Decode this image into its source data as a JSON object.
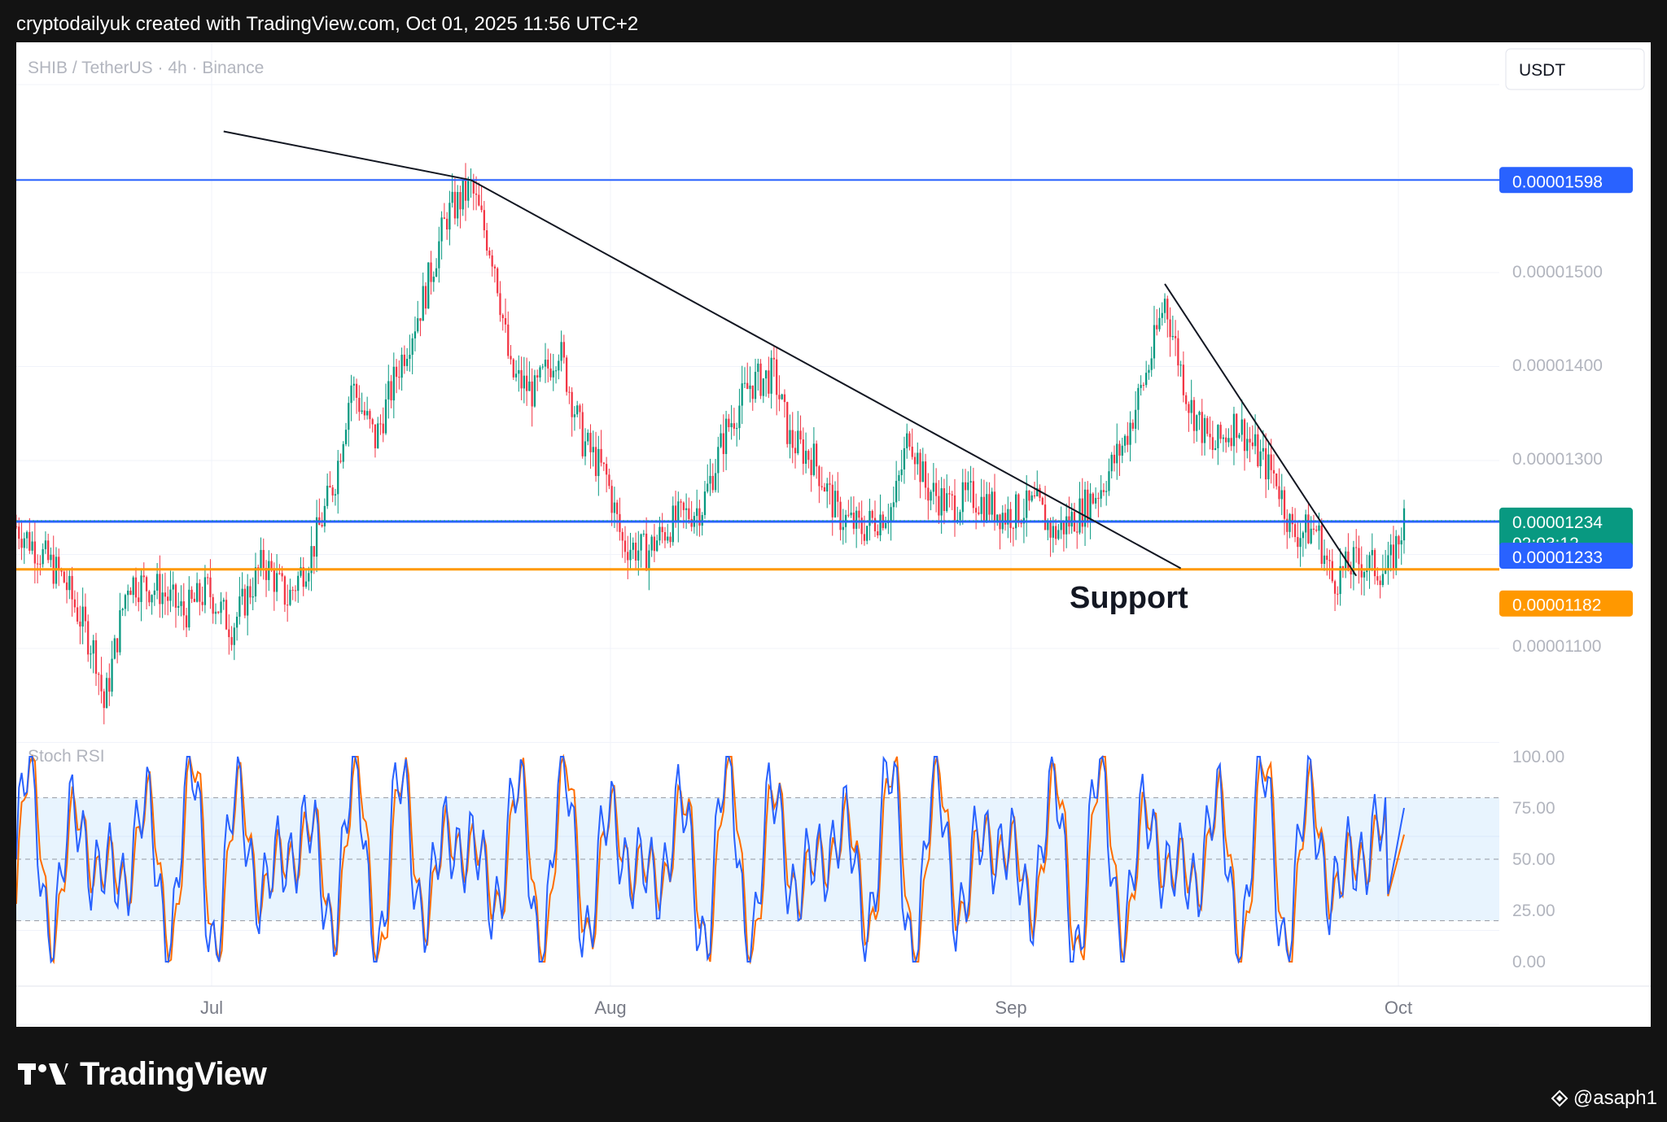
{
  "header": {
    "text": "cryptodailyuk created with TradingView.com, Oct 01, 2025 11:56 UTC+2"
  },
  "footer": {
    "brand": "TradingView",
    "user": "@asaph1"
  },
  "colors": {
    "up": "#089981",
    "down": "#f23645",
    "blue_line": "#2962ff",
    "orange_line": "#ff9800",
    "stoch_k": "#2962ff",
    "stoch_d": "#ff6d00",
    "grid": "#f0f3fa"
  },
  "chart_data": {
    "type": "candlestick",
    "symbol_label": "SHIB / TetherUS · 4h · Binance",
    "currency": "USDT",
    "x_labels": [
      "Jul",
      "Aug",
      "Sep",
      "Oct"
    ],
    "y_ticks": [
      "0.00001500",
      "0.00001400",
      "0.00001300",
      "0.00001100"
    ],
    "horizontal_levels": [
      {
        "value": 1.598e-05,
        "label": "0.00001598",
        "color": "#2962ff"
      },
      {
        "value": 1.233e-05,
        "label": "0.00001233",
        "color": "#2962ff"
      },
      {
        "value": 1.182e-05,
        "label": "0.00001182",
        "color": "#ff9800"
      }
    ],
    "last_price": {
      "value": 1.234e-05,
      "label": "0.00001234",
      "countdown": "02:03:12"
    },
    "annotation": "Support",
    "price_path": [
      [
        0.0,
        1.228e-05
      ],
      [
        1.5,
        1.2e-05
      ],
      [
        3.0,
        1.17e-05
      ],
      [
        5.0,
        1.09e-05
      ],
      [
        5.5,
        1.035e-05
      ],
      [
        7.0,
        1.17e-05
      ],
      [
        9.0,
        1.16e-05
      ],
      [
        10.5,
        1.135e-05
      ],
      [
        12.0,
        1.16e-05
      ],
      [
        13.5,
        1.12e-05
      ],
      [
        15.5,
        1.19e-05
      ],
      [
        17.0,
        1.15e-05
      ],
      [
        18.5,
        1.2e-05
      ],
      [
        20.0,
        1.28e-05
      ],
      [
        21.0,
        1.38e-05
      ],
      [
        22.5,
        1.32e-05
      ],
      [
        24.0,
        1.4e-05
      ],
      [
        25.5,
        1.47e-05
      ],
      [
        27.0,
        1.56e-05
      ],
      [
        28.5,
        1.59e-05
      ],
      [
        30.0,
        1.51e-05
      ],
      [
        31.0,
        1.39e-05
      ],
      [
        32.5,
        1.37e-05
      ],
      [
        34.0,
        1.42e-05
      ],
      [
        35.5,
        1.32e-05
      ],
      [
        37.0,
        1.28e-05
      ],
      [
        38.0,
        1.21e-05
      ],
      [
        39.5,
        1.2e-05
      ],
      [
        41.0,
        1.23e-05
      ],
      [
        43.0,
        1.25e-05
      ],
      [
        44.5,
        1.33e-05
      ],
      [
        46.0,
        1.38e-05
      ],
      [
        47.5,
        1.39e-05
      ],
      [
        48.5,
        1.32e-05
      ],
      [
        50.0,
        1.3e-05
      ],
      [
        51.5,
        1.24e-05
      ],
      [
        53.0,
        1.225e-05
      ],
      [
        55.0,
        1.25e-05
      ],
      [
        56.0,
        1.33e-05
      ],
      [
        57.0,
        1.27e-05
      ],
      [
        58.5,
        1.25e-05
      ],
      [
        60.0,
        1.26e-05
      ],
      [
        62.0,
        1.24e-05
      ],
      [
        64.0,
        1.25e-05
      ],
      [
        65.0,
        1.22e-05
      ],
      [
        66.5,
        1.24e-05
      ],
      [
        68.0,
        1.27e-05
      ],
      [
        69.5,
        1.32e-05
      ],
      [
        71.0,
        1.4e-05
      ],
      [
        72.0,
        1.47e-05
      ],
      [
        73.5,
        1.36e-05
      ],
      [
        75.0,
        1.31e-05
      ],
      [
        76.5,
        1.34e-05
      ],
      [
        78.0,
        1.3e-05
      ],
      [
        79.0,
        1.28e-05
      ],
      [
        80.0,
        1.22e-05
      ],
      [
        81.5,
        1.225e-05
      ],
      [
        82.5,
        1.17e-05
      ],
      [
        84.0,
        1.19e-05
      ],
      [
        86.0,
        1.18e-05
      ],
      [
        87.0,
        1.234e-05
      ]
    ],
    "trendlines": [
      {
        "from": [
          13.0,
          1.65e-05
        ],
        "to": [
          28.5,
          1.598e-05
        ]
      },
      {
        "from": [
          28.5,
          1.598e-05
        ],
        "to": [
          73.0,
          1.183e-05
        ]
      },
      {
        "from": [
          72.0,
          1.487e-05
        ],
        "to": [
          84.0,
          1.175e-05
        ]
      }
    ],
    "sub_indicator": {
      "name": "Stoch RSI",
      "y_ticks": [
        "100.00",
        "75.00",
        "50.00",
        "25.00",
        "0.00"
      ],
      "band": [
        20,
        80
      ],
      "midline": 50,
      "current_k": 75,
      "current_d": 62
    }
  }
}
